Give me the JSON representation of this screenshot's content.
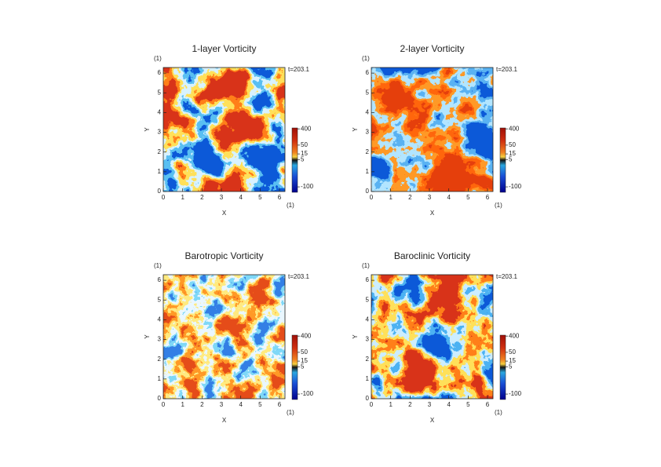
{
  "chart_data": [
    {
      "type": "heatmap",
      "title": "1-layer Vorticity",
      "xlabel": "X",
      "ylabel": "Y",
      "x_unit": "(1)",
      "y_unit": "(1)",
      "time": "t=203.1",
      "xlim": [
        0,
        6.283
      ],
      "ylim": [
        0,
        6.283
      ],
      "xticks": [
        0,
        1,
        2,
        3,
        4,
        5,
        6
      ],
      "yticks": [
        0,
        1,
        2,
        3,
        4,
        5,
        6
      ],
      "colorbar_lim": [
        -200,
        450
      ],
      "colorbar_ticks": [
        400,
        50,
        15,
        5,
        -100
      ]
    },
    {
      "type": "heatmap",
      "title": "2-layer Vorticity",
      "xlabel": "X",
      "ylabel": "Y",
      "x_unit": "(1)",
      "y_unit": "(1)",
      "time": "t=203.1",
      "xlim": [
        0,
        6.283
      ],
      "ylim": [
        0,
        6.283
      ],
      "xticks": [
        0,
        1,
        2,
        3,
        4,
        5,
        6
      ],
      "yticks": [
        0,
        1,
        2,
        3,
        4,
        5,
        6
      ],
      "colorbar_lim": [
        -200,
        450
      ],
      "colorbar_ticks": [
        400,
        50,
        15,
        5,
        -100
      ]
    },
    {
      "type": "heatmap",
      "title": "Barotropic Vorticity",
      "xlabel": "X",
      "ylabel": "Y",
      "x_unit": "(1)",
      "y_unit": "(1)",
      "time": "t=203.1",
      "xlim": [
        0,
        6.283
      ],
      "ylim": [
        0,
        6.283
      ],
      "xticks": [
        0,
        1,
        2,
        3,
        4,
        5,
        6
      ],
      "yticks": [
        0,
        1,
        2,
        3,
        4,
        5,
        6
      ],
      "colorbar_lim": [
        -200,
        450
      ],
      "colorbar_ticks": [
        400,
        50,
        15,
        5,
        -100
      ]
    },
    {
      "type": "heatmap",
      "title": "Baroclinic Vorticity",
      "xlabel": "X",
      "ylabel": "Y",
      "x_unit": "(1)",
      "y_unit": "(1)",
      "time": "t=203.1",
      "xlim": [
        0,
        6.283
      ],
      "ylim": [
        0,
        6.283
      ],
      "xticks": [
        0,
        1,
        2,
        3,
        4,
        5,
        6
      ],
      "yticks": [
        0,
        1,
        2,
        3,
        4,
        5,
        6
      ],
      "colorbar_lim": [
        -200,
        450
      ],
      "colorbar_ticks": [
        400,
        50,
        15,
        5,
        -100
      ]
    }
  ]
}
